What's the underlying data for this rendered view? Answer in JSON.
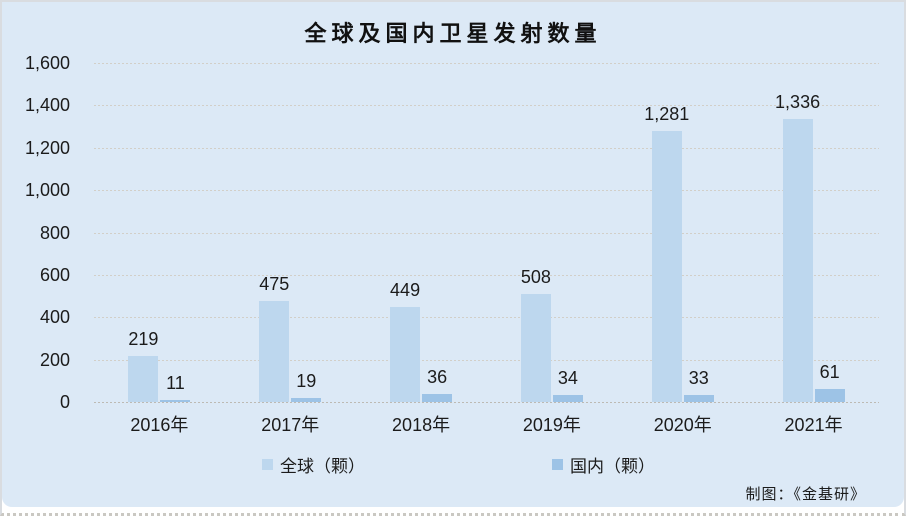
{
  "chart_data": {
    "type": "bar",
    "title": "全球及国内卫星发射数量",
    "categories": [
      "2016年",
      "2017年",
      "2018年",
      "2019年",
      "2020年",
      "2021年"
    ],
    "series": [
      {
        "id": "global",
        "name": "全球（颗）",
        "color": "#bdd7ee",
        "values": [
          219,
          475,
          449,
          508,
          1281,
          1336
        ],
        "labels": [
          "219",
          "475",
          "449",
          "508",
          "1,281",
          "1,336"
        ]
      },
      {
        "id": "domestic",
        "name": "国内（颗）",
        "color": "#9dc3e6",
        "values": [
          11,
          19,
          36,
          34,
          33,
          61
        ],
        "labels": [
          "11",
          "19",
          "36",
          "34",
          "33",
          "61"
        ]
      }
    ],
    "y_axis": {
      "min": 0,
      "max": 1600,
      "step": 200,
      "tick_labels": [
        "0",
        "200",
        "400",
        "600",
        "800",
        "1,000",
        "1,200",
        "1,400",
        "1,600"
      ]
    },
    "grid": true,
    "legend_position": "bottom"
  },
  "source_note": "制图：《金基研》",
  "colors": {
    "background": "#dce9f6",
    "global_bar": "#bdd7ee",
    "domestic_bar": "#9dc3e6",
    "gridline": "#d2cfc8",
    "text": "#1b1b1b"
  }
}
